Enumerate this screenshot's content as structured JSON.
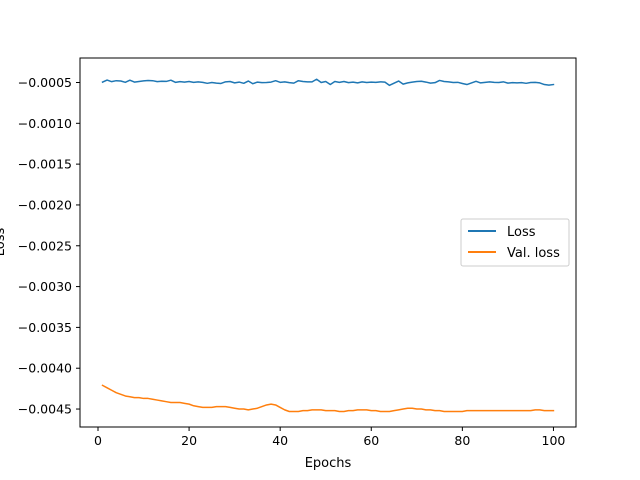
{
  "chart_data": {
    "type": "line",
    "title": "",
    "xlabel": "Epochs",
    "ylabel": "Loss",
    "xlim": [
      -3.95,
      104.95
    ],
    "ylim": [
      -0.00472,
      -0.0002
    ],
    "xticks": [
      0,
      20,
      40,
      60,
      80,
      100
    ],
    "xtick_labels": [
      "0",
      "20",
      "40",
      "60",
      "80",
      "100"
    ],
    "yticks": [
      -0.0005,
      -0.001,
      -0.0015,
      -0.002,
      -0.0025,
      -0.003,
      -0.0035,
      -0.004,
      -0.0045
    ],
    "ytick_labels": [
      "−0.0005",
      "−0.0010",
      "−0.0015",
      "−0.0020",
      "−0.0025",
      "−0.0030",
      "−0.0035",
      "−0.0040",
      "−0.0045"
    ],
    "grid": false,
    "legend": {
      "placement": "center-right"
    },
    "x": [
      1,
      2,
      3,
      4,
      5,
      6,
      7,
      8,
      9,
      10,
      11,
      12,
      13,
      14,
      15,
      16,
      17,
      18,
      19,
      20,
      21,
      22,
      23,
      24,
      25,
      26,
      27,
      28,
      29,
      30,
      31,
      32,
      33,
      34,
      35,
      36,
      37,
      38,
      39,
      40,
      41,
      42,
      43,
      44,
      45,
      46,
      47,
      48,
      49,
      50,
      51,
      52,
      53,
      54,
      55,
      56,
      57,
      58,
      59,
      60,
      61,
      62,
      63,
      64,
      65,
      66,
      67,
      68,
      69,
      70,
      71,
      72,
      73,
      74,
      75,
      76,
      77,
      78,
      79,
      80,
      81,
      82,
      83,
      84,
      85,
      86,
      87,
      88,
      89,
      90,
      91,
      92,
      93,
      94,
      95,
      96,
      97,
      98,
      99,
      100
    ],
    "series": [
      {
        "name": "Loss",
        "color": "#1f77b4",
        "values": [
          -0.000495,
          -0.00047,
          -0.00049,
          -0.000478,
          -0.000482,
          -0.000498,
          -0.000472,
          -0.000495,
          -0.000488,
          -0.00048,
          -0.000475,
          -0.000478,
          -0.00049,
          -0.000485,
          -0.000487,
          -0.000472,
          -0.000498,
          -0.00049,
          -0.000495,
          -0.000488,
          -0.000498,
          -0.000492,
          -0.000498,
          -0.00051,
          -0.0005,
          -0.000508,
          -0.000512,
          -0.000492,
          -0.000488,
          -0.000505,
          -0.000495,
          -0.00051,
          -0.000482,
          -0.000515,
          -0.000495,
          -0.000502,
          -0.0005,
          -0.000495,
          -0.000478,
          -0.000498,
          -0.000492,
          -0.000502,
          -0.000508,
          -0.000478,
          -0.000488,
          -0.000492,
          -0.000492,
          -0.00046,
          -0.0005,
          -0.000488,
          -0.000525,
          -0.000488,
          -0.000498,
          -0.000488,
          -0.000502,
          -0.000495,
          -0.000505,
          -0.000492,
          -0.0005,
          -0.000495,
          -0.000498,
          -0.000492,
          -0.000495,
          -0.000535,
          -0.000508,
          -0.000482,
          -0.00052,
          -0.000505,
          -0.000495,
          -0.000488,
          -0.000485,
          -0.000495,
          -0.000508,
          -0.000502,
          -0.000475,
          -0.000488,
          -0.000492,
          -0.0005,
          -0.000498,
          -0.000512,
          -0.000525,
          -0.000505,
          -0.000485,
          -0.000505,
          -0.000498,
          -0.000492,
          -0.000498,
          -0.0005,
          -0.000492,
          -0.000508,
          -0.000502,
          -0.000505,
          -0.000502,
          -0.00051,
          -0.0005,
          -0.000498,
          -0.000505,
          -0.000525,
          -0.000532,
          -0.000525
        ]
      },
      {
        "name": "Val. loss",
        "color": "#ff7f0e",
        "values": [
          -0.00421,
          -0.00424,
          -0.00427,
          -0.0043,
          -0.00432,
          -0.00434,
          -0.00435,
          -0.00436,
          -0.00436,
          -0.00437,
          -0.00437,
          -0.00438,
          -0.00439,
          -0.0044,
          -0.00441,
          -0.00442,
          -0.00442,
          -0.00442,
          -0.00443,
          -0.00444,
          -0.00446,
          -0.00447,
          -0.00448,
          -0.00448,
          -0.00448,
          -0.00447,
          -0.00447,
          -0.00447,
          -0.00448,
          -0.00449,
          -0.0045,
          -0.0045,
          -0.00451,
          -0.0045,
          -0.00449,
          -0.00447,
          -0.00445,
          -0.00444,
          -0.00445,
          -0.00448,
          -0.00451,
          -0.00453,
          -0.00453,
          -0.00453,
          -0.00452,
          -0.00452,
          -0.00451,
          -0.00451,
          -0.00451,
          -0.00452,
          -0.00452,
          -0.00452,
          -0.00453,
          -0.00453,
          -0.00452,
          -0.00452,
          -0.00451,
          -0.00451,
          -0.00451,
          -0.00452,
          -0.00452,
          -0.00453,
          -0.00453,
          -0.00453,
          -0.00452,
          -0.00451,
          -0.0045,
          -0.00449,
          -0.00449,
          -0.0045,
          -0.0045,
          -0.00451,
          -0.00451,
          -0.00452,
          -0.00452,
          -0.00453,
          -0.00453,
          -0.00453,
          -0.00453,
          -0.00453,
          -0.00452,
          -0.00452,
          -0.00452,
          -0.00452,
          -0.00452,
          -0.00452,
          -0.00452,
          -0.00452,
          -0.00452,
          -0.00452,
          -0.00452,
          -0.00452,
          -0.00452,
          -0.00452,
          -0.00452,
          -0.00451,
          -0.00451,
          -0.00452,
          -0.00452,
          -0.00452
        ]
      }
    ]
  }
}
